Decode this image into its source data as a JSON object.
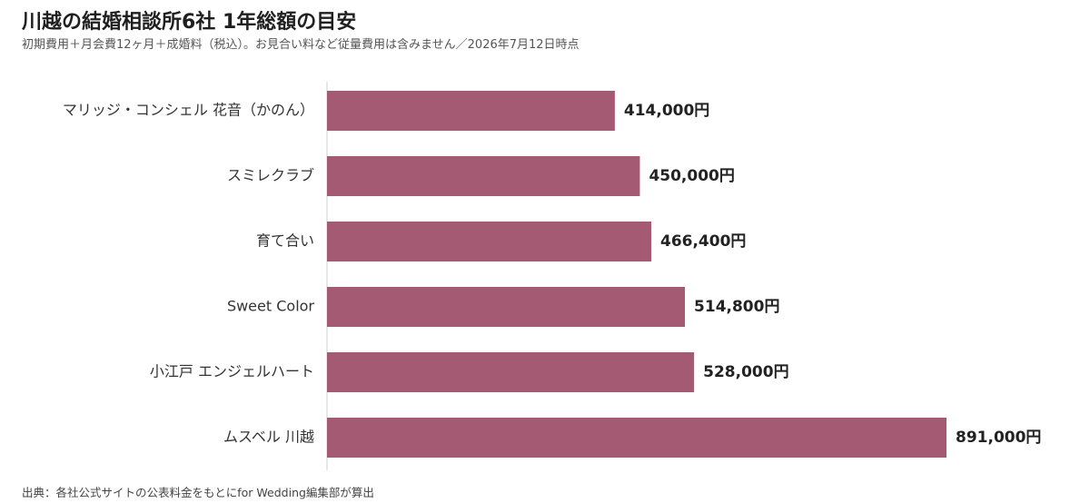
{
  "header": {
    "title": "川越の結婚相談所6社 1年総額の目安",
    "subtitle": "初期費用＋月会費12ヶ月＋成婚料（税込）。お見合い料など従量費用は含みません／2026年7月12日時点"
  },
  "footer": {
    "source": "出典：各社公式サイトの公表料金をもとにfor Wedding編集部が算出"
  },
  "colors": {
    "bar": "#a55a74",
    "axis": "#cfcfcf"
  },
  "chart_data": {
    "type": "bar",
    "orientation": "horizontal",
    "categories": [
      "マリッジ・コンシェル 花音（かのん）",
      "スミレクラブ",
      "育て合い",
      "Sweet Color",
      "小江戸 エンジェルハート",
      "ムスベル 川越"
    ],
    "values": [
      414000,
      450000,
      466400,
      514800,
      528000,
      891000
    ],
    "value_labels": [
      "414,000円",
      "450,000円",
      "466,400円",
      "514,800円",
      "528,000円",
      "891,000円"
    ],
    "xlim": [
      0,
      891000
    ],
    "grid": false,
    "legend": "none"
  }
}
